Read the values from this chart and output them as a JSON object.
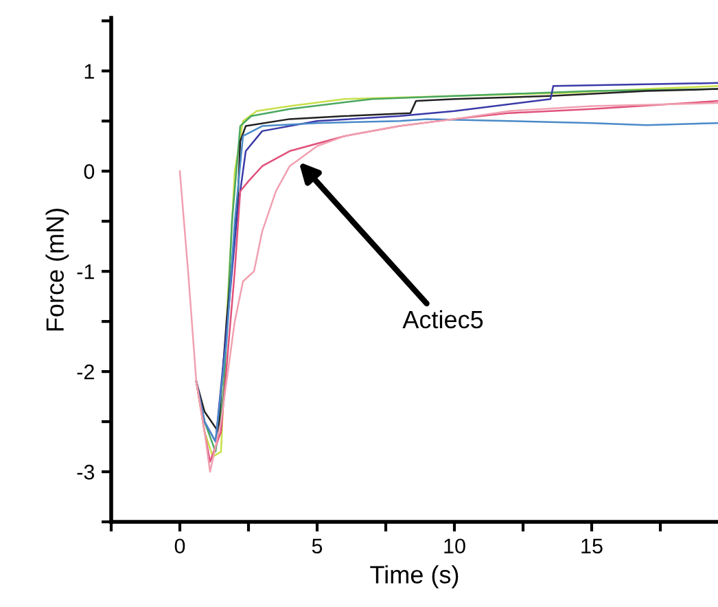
{
  "chart_data": {
    "type": "line",
    "xlabel": "Time (s)",
    "ylabel": "Force (mN)",
    "xlim": [
      -2.5,
      19.6
    ],
    "ylim": [
      -3.5,
      1.53
    ],
    "xticks": [
      {
        "value": -2.5,
        "label": null
      },
      0,
      {
        "value": 2.5,
        "label": null
      },
      5,
      {
        "value": 7.5,
        "label": null
      },
      10,
      {
        "value": 12.5,
        "label": null
      },
      15,
      {
        "value": 17.5,
        "label": null
      }
    ],
    "yticks": [
      {
        "value": -3.5,
        "label": null
      },
      -3,
      {
        "value": -2.5,
        "label": null
      },
      -2,
      {
        "value": -1.5,
        "label": null
      },
      -1,
      {
        "value": -0.5,
        "label": null
      },
      0,
      {
        "value": 0.5,
        "label": null
      },
      1,
      {
        "value": 1.5,
        "label": null
      }
    ],
    "grid": false,
    "legend": false,
    "marker": "none",
    "line_style": "solid",
    "annotations": [
      "Actiec5"
    ],
    "series": [
      {
        "color": "#c8e04a",
        "x": [
          0.6,
          0.9,
          1.2,
          1.5,
          1.7,
          2.0,
          2.3,
          2.8,
          4,
          6,
          10,
          14,
          17,
          19.6
        ],
        "values": [
          -2.1,
          -2.6,
          -2.85,
          -2.8,
          -1.5,
          0,
          0.5,
          0.6,
          0.65,
          0.72,
          0.75,
          0.78,
          0.82,
          0.85
        ]
      },
      {
        "color": "#4aa860",
        "x": [
          0.6,
          0.9,
          1.3,
          1.6,
          1.9,
          2.2,
          2.6,
          4,
          7,
          10,
          15,
          19.6
        ],
        "values": [
          -2.1,
          -2.5,
          -2.8,
          -2.2,
          -0.5,
          0.45,
          0.55,
          0.62,
          0.72,
          0.75,
          0.8,
          0.82
        ]
      },
      {
        "color": "#222222",
        "x": [
          0.6,
          0.9,
          1.4,
          1.7,
          2.1,
          2.2,
          2.4,
          4,
          6,
          8.4,
          8.6,
          10,
          13.5,
          17,
          19.6
        ],
        "values": [
          -2.1,
          -2.4,
          -2.6,
          -1.5,
          -0.35,
          0.3,
          0.45,
          0.52,
          0.55,
          0.58,
          0.7,
          0.72,
          0.75,
          0.8,
          0.82
        ]
      },
      {
        "color": "#3a3aa8",
        "x": [
          0.6,
          0.9,
          1.3,
          1.7,
          2.1,
          2.4,
          3,
          5,
          8,
          10,
          13.5,
          13.6,
          19.6
        ],
        "values": [
          -2.1,
          -2.5,
          -2.7,
          -1.6,
          -0.4,
          0.2,
          0.4,
          0.5,
          0.55,
          0.6,
          0.72,
          0.85,
          0.88
        ]
      },
      {
        "color": "#4a8ac8",
        "x": [
          0.6,
          0.9,
          1.3,
          1.7,
          2.0,
          2.3,
          3,
          5,
          8,
          9,
          12,
          15,
          17,
          19.6
        ],
        "values": [
          -2.1,
          -2.5,
          -2.7,
          -1.7,
          -0.5,
          0.35,
          0.45,
          0.48,
          0.5,
          0.52,
          0.5,
          0.48,
          0.46,
          0.48
        ]
      },
      {
        "color": "#e0507a",
        "x": [
          0.6,
          0.9,
          1.1,
          1.5,
          2.0,
          2.2,
          2.5,
          3,
          4,
          6,
          8,
          10,
          12,
          15,
          19.6
        ],
        "values": [
          -2.1,
          -2.6,
          -2.9,
          -2.6,
          -1,
          -0.2,
          -0.1,
          0.05,
          0.2,
          0.35,
          0.45,
          0.52,
          0.58,
          0.62,
          0.7
        ]
      },
      {
        "color": "#f0a0b0",
        "x": [
          0,
          0.3,
          0.6,
          0.9,
          1.1,
          1.5,
          2.0,
          2.3,
          2.5,
          2.7,
          3,
          3.5,
          4,
          5,
          6,
          8,
          10,
          12,
          15,
          19.6
        ],
        "values": [
          0,
          -1,
          -2.1,
          -2.6,
          -3.0,
          -2.5,
          -1.5,
          -1.1,
          -1.05,
          -1.0,
          -0.6,
          -0.2,
          0.05,
          0.25,
          0.35,
          0.45,
          0.52,
          0.6,
          0.65,
          0.68
        ]
      }
    ]
  }
}
